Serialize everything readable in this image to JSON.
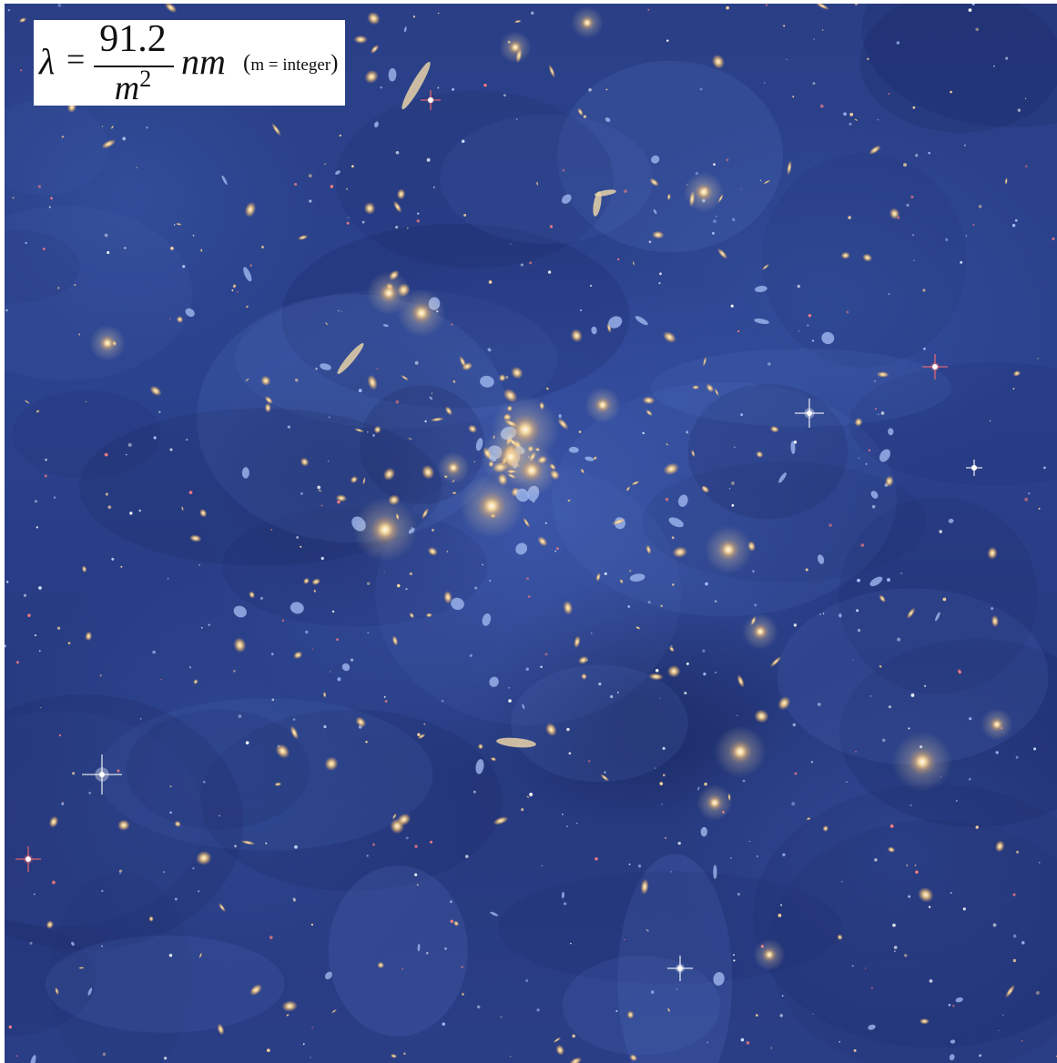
{
  "formula": {
    "lambda": "λ",
    "equals": "=",
    "numerator": "91.2",
    "denominator_var": "m",
    "denominator_exp": "2",
    "unit": "nm",
    "paren_open": "(",
    "condition": "m = integer",
    "paren_close": ")"
  },
  "image": {
    "subject": "galaxy-cluster-deep-field",
    "palette": {
      "background": "#2a3f86",
      "haze": "#4664be",
      "galaxy_core": "#fff0c8",
      "galaxy_glow": "#f0b464",
      "star_red": "#ff5a5a",
      "star_white": "#ffffff"
    }
  }
}
